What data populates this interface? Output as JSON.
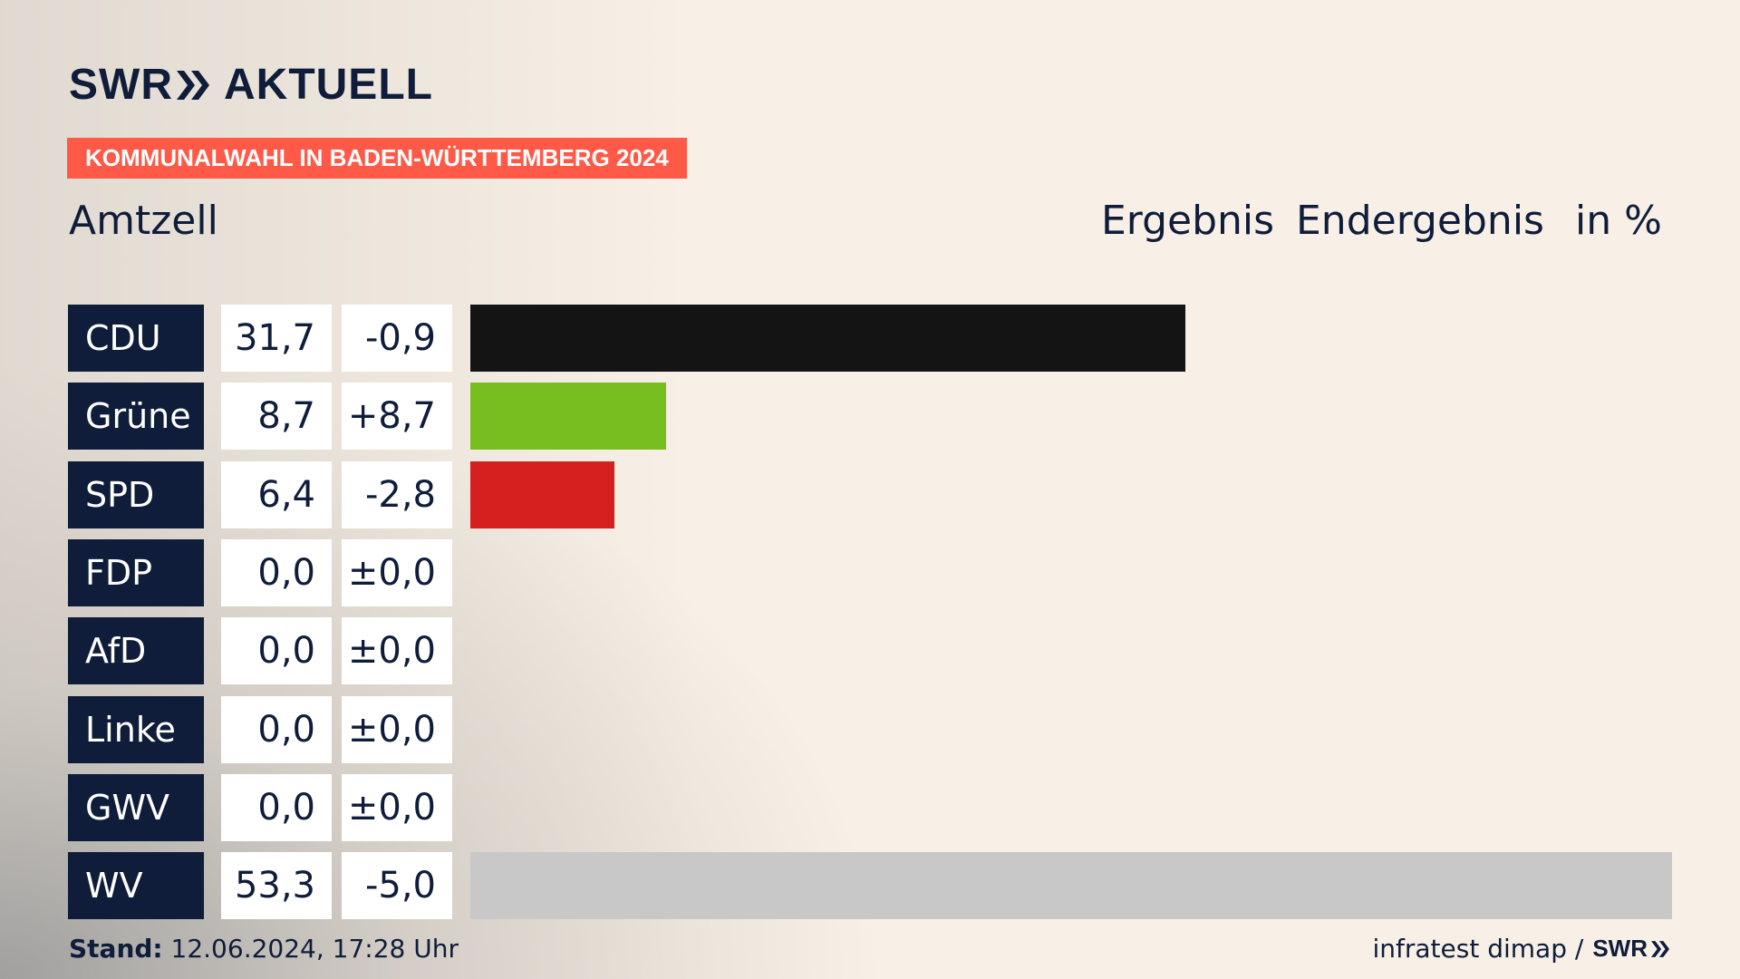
{
  "brand": {
    "logo_text_1": "SWR",
    "logo_text_2": "AKTUELL"
  },
  "badge": "KOMMUNALWAHL IN BADEN-WÜRTTEMBERG 2024",
  "place": "Amtzell",
  "headers": {
    "result": "Ergebnis",
    "status": "Endergebnis",
    "unit": "in %"
  },
  "colors": {
    "navy": "#0f1d3a",
    "accent": "#ff5a47"
  },
  "chart_data": {
    "type": "bar",
    "orientation": "horizontal",
    "categories": [
      "CDU",
      "Grüne",
      "SPD",
      "FDP",
      "AfD",
      "Linke",
      "GWV",
      "WV"
    ],
    "values": [
      31.7,
      8.7,
      6.4,
      0.0,
      0.0,
      0.0,
      0.0,
      53.3
    ],
    "values_label": [
      "31,7",
      "8,7",
      "6,4",
      "0,0",
      "0,0",
      "0,0",
      "0,0",
      "53,3"
    ],
    "diff_label": [
      "-0,9",
      "+8,7",
      "-2,8",
      "±0,0",
      "±0,0",
      "±0,0",
      "±0,0",
      "-5,0"
    ],
    "colors": [
      "#141414",
      "#78be1e",
      "#d61f1f",
      "#f5d700",
      "#0a8bd0",
      "#b0125d",
      "#c8c8c8",
      "#c8c8c8"
    ],
    "xlim": [
      0,
      53.3
    ]
  },
  "footer": {
    "stand_label": "Stand:",
    "stand_value": "12.06.2024, 17:28 Uhr",
    "source": "infratest dimap /",
    "source_brand": "SWR"
  }
}
